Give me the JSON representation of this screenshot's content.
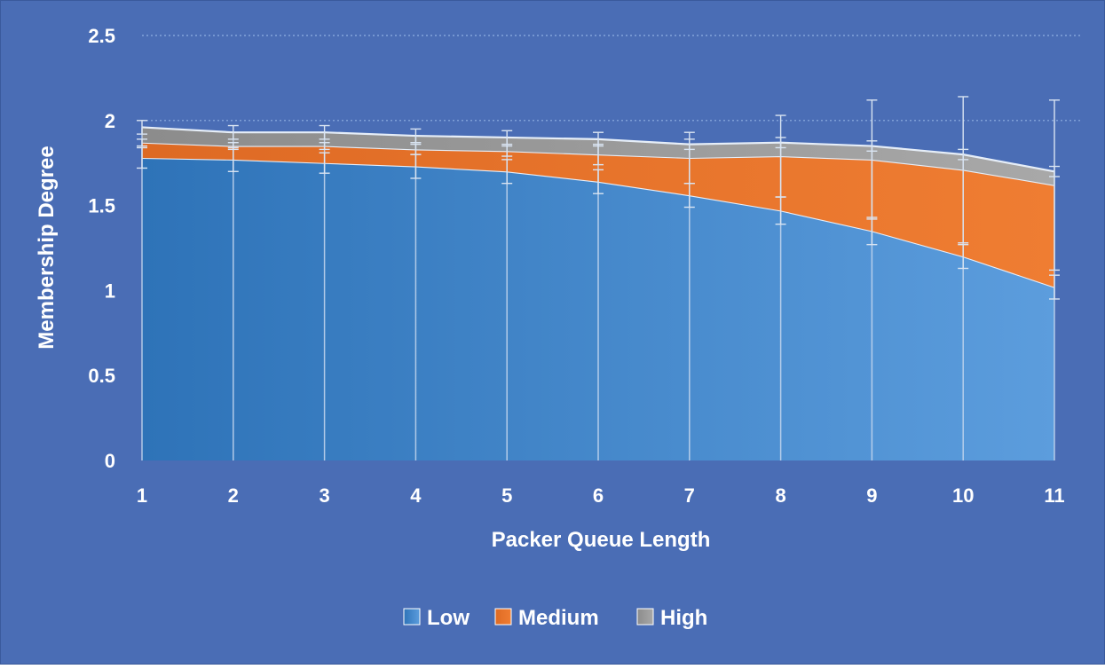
{
  "chart_data": {
    "type": "area",
    "stacked": true,
    "xlabel": "Packer Queue Length",
    "ylabel": "Membership Degree",
    "x": [
      1,
      2,
      3,
      4,
      5,
      6,
      7,
      8,
      9,
      10,
      11
    ],
    "x_tick_labels": [
      "1",
      "2",
      "3",
      "4",
      "5",
      "6",
      "7",
      "8",
      "9",
      "10",
      "11"
    ],
    "ylim": [
      0,
      2.5
    ],
    "y_ticks": [
      0,
      0.5,
      1,
      1.5,
      2,
      2.5
    ],
    "y_tick_labels": [
      "0",
      "0.5",
      "1",
      "1.5",
      "2",
      "2.5"
    ],
    "grid": "horizontal dotted at 2 and 2.5",
    "legend_position": "bottom",
    "background_color": "#4a6db5",
    "series": [
      {
        "name": "Low",
        "color": "#3f86cf",
        "values": [
          1.78,
          1.77,
          1.75,
          1.73,
          1.7,
          1.64,
          1.56,
          1.47,
          1.35,
          1.2,
          1.02
        ],
        "error": [
          0.06,
          0.07,
          0.06,
          0.07,
          0.07,
          0.07,
          0.07,
          0.08,
          0.08,
          0.07,
          0.07
        ]
      },
      {
        "name": "Medium",
        "color": "#ed7d31",
        "values": [
          0.09,
          0.08,
          0.1,
          0.1,
          0.12,
          0.16,
          0.22,
          0.32,
          0.42,
          0.51,
          0.6
        ],
        "error": [
          0.02,
          0.02,
          0.02,
          0.03,
          0.03,
          0.06,
          0.15,
          0.24,
          0.35,
          0.43,
          0.5
        ]
      },
      {
        "name": "High",
        "color": "#a5a5a5",
        "values": [
          0.09,
          0.08,
          0.08,
          0.08,
          0.08,
          0.09,
          0.08,
          0.08,
          0.08,
          0.09,
          0.08
        ],
        "error": [
          0.04,
          0.04,
          0.04,
          0.04,
          0.04,
          0.04,
          0.03,
          0.03,
          0.03,
          0.03,
          0.03
        ]
      }
    ]
  }
}
